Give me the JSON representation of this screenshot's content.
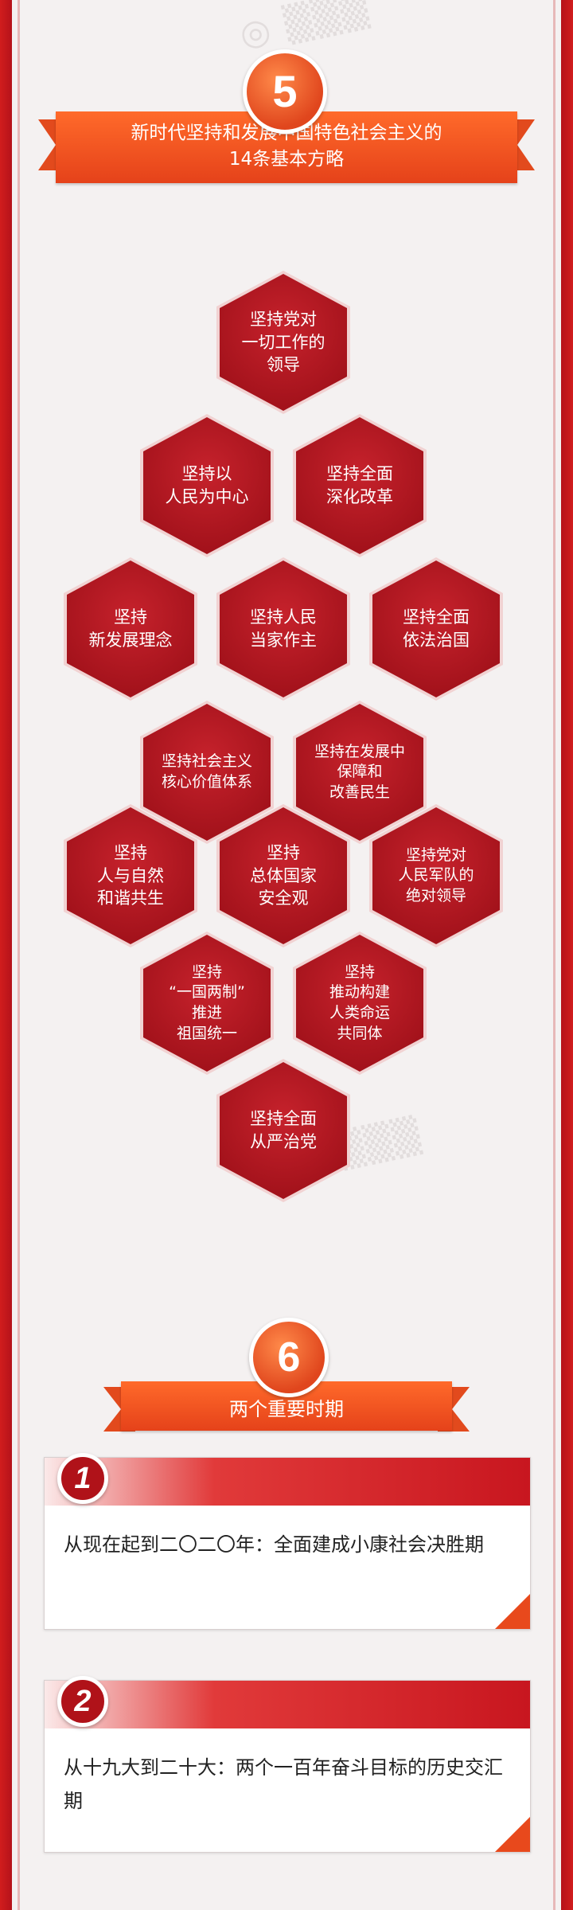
{
  "sections": [
    {
      "number": "5",
      "title_line1": "新时代坚持和发展中国特色社会主义的",
      "title_line2": "14条基本方略"
    },
    {
      "number": "6",
      "title_line1": "两个重要时期"
    }
  ],
  "strategies": [
    "坚持党对\n一切工作的\n领导",
    "坚持以\n人民为中心",
    "坚持全面\n深化改革",
    "坚持\n新发展理念",
    "坚持人民\n当家作主",
    "坚持全面\n依法治国",
    "坚持社会主义\n核心价值体系",
    "坚持在发展中\n保障和\n改善民生",
    "坚持\n人与自然\n和谐共生",
    "坚持\n总体国家\n安全观",
    "坚持党对\n人民军队的\n绝对领导",
    "坚持\n“一国两制”\n推进\n祖国统一",
    "坚持\n推动构建\n人类命运\n共同体",
    "坚持全面\n从严治党"
  ],
  "periods": [
    {
      "number": "1",
      "text": "从现在起到二〇二〇年：全面建成小康社会决胜期"
    },
    {
      "number": "2",
      "text": "从十九大到二十大：两个一百年奋斗目标的历史交汇期"
    }
  ],
  "colors": {
    "frame_red": "#c8161f",
    "hex_red": "#b01822",
    "ribbon_orange": "#f05a22",
    "background": "#f4f1f1"
  }
}
